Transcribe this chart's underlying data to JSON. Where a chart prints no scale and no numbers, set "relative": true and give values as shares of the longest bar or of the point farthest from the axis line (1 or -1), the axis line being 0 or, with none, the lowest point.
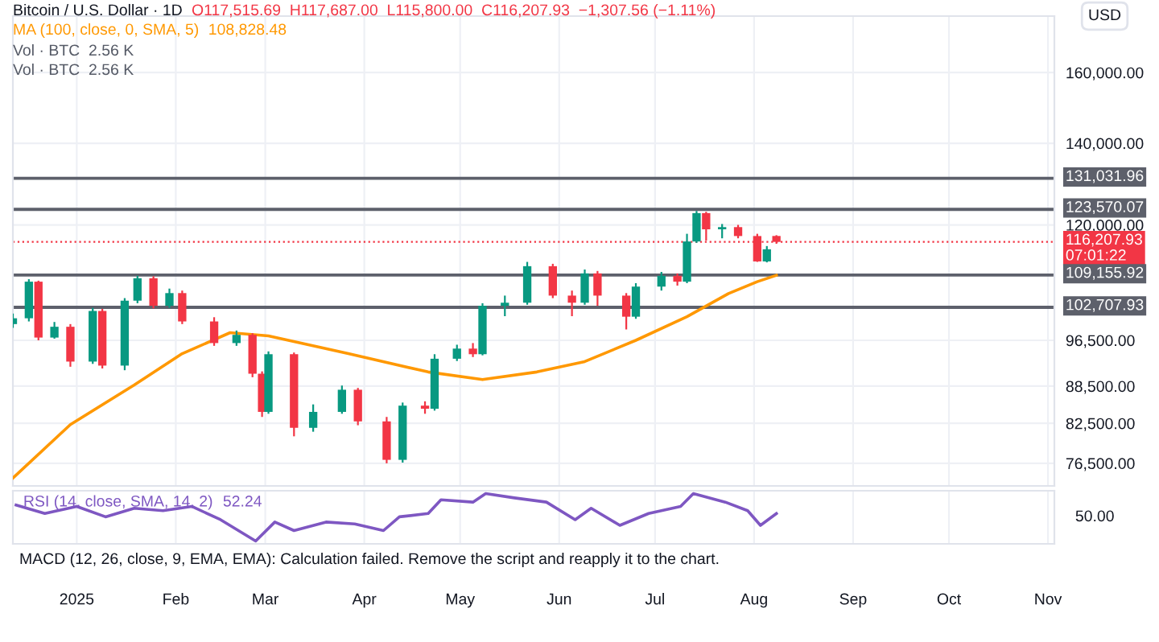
{
  "chart_data": [
    {
      "type": "candlestick",
      "title": "Bitcoin / U.S. Dollar · 1D",
      "ylabel": "USD",
      "x": [
        "2024-12-12",
        "2024-12-17",
        "2024-12-20",
        "2024-12-25",
        "2024-12-30",
        "2025-01-06",
        "2025-01-09",
        "2025-01-16",
        "2025-01-20",
        "2025-01-25",
        "2025-01-30",
        "2025-02-03",
        "2025-02-13",
        "2025-02-20",
        "2025-02-25",
        "2025-02-28",
        "2025-03-02",
        "2025-03-10",
        "2025-03-16",
        "2025-03-25",
        "2025-03-30",
        "2025-04-08",
        "2025-04-13",
        "2025-04-20",
        "2025-04-23",
        "2025-04-30",
        "2025-05-05",
        "2025-05-08",
        "2025-05-15",
        "2025-05-22",
        "2025-05-30",
        "2025-06-05",
        "2025-06-09",
        "2025-06-13",
        "2025-06-22",
        "2025-06-25",
        "2025-07-03",
        "2025-07-08",
        "2025-07-11",
        "2025-07-14",
        "2025-07-17",
        "2025-07-22",
        "2025-07-27",
        "2025-08-02",
        "2025-08-05",
        "2025-08-08"
      ],
      "ohlc": [
        [
          99500,
          101500,
          98800,
          100600
        ],
        [
          100600,
          108300,
          100000,
          107800
        ],
        [
          107800,
          108000,
          96500,
          97000
        ],
        [
          97000,
          99900,
          96800,
          99000
        ],
        [
          99000,
          99500,
          91800,
          92700
        ],
        [
          92700,
          102600,
          92300,
          102000
        ],
        [
          102000,
          102400,
          91500,
          92000
        ],
        [
          92000,
          104500,
          91200,
          104000
        ],
        [
          104000,
          109000,
          103500,
          108500
        ],
        [
          108500,
          108900,
          102500,
          103000
        ],
        [
          103000,
          106400,
          102600,
          105500
        ],
        [
          105500,
          106000,
          99500,
          100000
        ],
        [
          100000,
          100800,
          95500,
          96000
        ],
        [
          96000,
          98300,
          95500,
          97500
        ],
        [
          97500,
          97800,
          90000,
          90600
        ],
        [
          90600,
          91000,
          83500,
          84300
        ],
        [
          84300,
          94500,
          84000,
          94000
        ],
        [
          94000,
          94300,
          80500,
          81800
        ],
        [
          81800,
          85500,
          81200,
          84300
        ],
        [
          84300,
          88600,
          84000,
          87900
        ],
        [
          87900,
          88200,
          82200,
          82800
        ],
        [
          82800,
          83500,
          76500,
          77000
        ],
        [
          77000,
          85800,
          76600,
          85300
        ],
        [
          85300,
          86000,
          84000,
          84800
        ],
        [
          84800,
          94000,
          84500,
          93200
        ],
        [
          93200,
          95700,
          92800,
          95000
        ],
        [
          95000,
          96000,
          93500,
          94000
        ],
        [
          94000,
          103500,
          93800,
          103000
        ],
        [
          103000,
          105000,
          101000,
          103600
        ],
        [
          103600,
          111900,
          103200,
          111000
        ],
        [
          111000,
          111500,
          104500,
          105000
        ],
        [
          105000,
          106000,
          101000,
          103600
        ],
        [
          103600,
          110300,
          103200,
          109500
        ],
        [
          109500,
          110000,
          103000,
          105000
        ],
        [
          105000,
          105500,
          98500,
          100900
        ],
        [
          100900,
          107500,
          100500,
          106800
        ],
        [
          106800,
          109800,
          106000,
          109000
        ],
        [
          109000,
          109500,
          107000,
          107800
        ],
        [
          107800,
          118000,
          107500,
          116300
        ],
        [
          116300,
          123200,
          116000,
          122700
        ],
        [
          122700,
          123000,
          116500,
          119000
        ],
        [
          119000,
          120200,
          117000,
          119500
        ],
        [
          119500,
          120000,
          117000,
          117500
        ],
        [
          117500,
          118000,
          111900,
          112000
        ],
        [
          112000,
          115300,
          111800,
          114600
        ],
        [
          117515.69,
          117687,
          115800,
          116207.93
        ]
      ],
      "colors": [
        "#089981",
        "#089981",
        "#f23645",
        "#089981",
        "#f23645",
        "#089981",
        "#f23645",
        "#089981",
        "#089981",
        "#f23645",
        "#089981",
        "#f23645",
        "#f23645",
        "#089981",
        "#f23645",
        "#f23645",
        "#089981",
        "#f23645",
        "#089981",
        "#089981",
        "#f23645",
        "#f23645",
        "#089981",
        "#f23645",
        "#089981",
        "#089981",
        "#f23645",
        "#089981",
        "#089981",
        "#089981",
        "#f23645",
        "#f23645",
        "#089981",
        "#f23645",
        "#f23645",
        "#089981",
        "#089981",
        "#f23645",
        "#089981",
        "#089981",
        "#f23645",
        "#089981",
        "#f23645",
        "#f23645",
        "#089981",
        "#f23645"
      ],
      "series": [
        {
          "type": "line",
          "name": "MA (100, close, 0, SMA, 5)",
          "color": "#ff9800",
          "x": [
            "2024-12-12",
            "2024-12-30",
            "2025-01-19",
            "2025-02-03",
            "2025-02-18",
            "2025-03-02",
            "2025-03-27",
            "2025-04-21",
            "2025-05-08",
            "2025-05-25",
            "2025-06-09",
            "2025-06-25",
            "2025-07-11",
            "2025-07-24",
            "2025-08-02",
            "2025-08-08"
          ],
          "values": [
            74400,
            82300,
            88700,
            94100,
            97900,
            97300,
            94100,
            90900,
            89600,
            90900,
            92700,
            96500,
            100900,
            105400,
            107800,
            109100
          ]
        }
      ],
      "log": true,
      "ylim": [
        73300,
        178000
      ],
      "yticks": [
        {
          "value": 76500,
          "label": "76,500.00"
        },
        {
          "value": 82500,
          "label": "82,500.00"
        },
        {
          "value": 88500,
          "label": "88,500.00"
        },
        {
          "value": 96500,
          "label": "96,500.00"
        },
        {
          "value": 120000,
          "label": "120,000.00"
        },
        {
          "value": 140000,
          "label": "140,000.00"
        },
        {
          "value": 160000,
          "label": "160,000.00"
        }
      ],
      "xlim": [
        "2024-12-12",
        "2025-11-03"
      ],
      "xticks": [
        {
          "value": "2025-01-01",
          "label": null
        },
        {
          "value": "2025-02-01",
          "label": null
        },
        {
          "value": "2025-03-01",
          "label": null
        },
        {
          "value": "2025-04-01",
          "label": null
        },
        {
          "value": "2025-05-01",
          "label": null
        },
        {
          "value": "2025-06-01",
          "label": null
        },
        {
          "value": "2025-07-01",
          "label": null
        },
        {
          "value": "2025-08-01",
          "label": null
        },
        {
          "value": "2025-09-01",
          "label": null
        },
        {
          "value": "2025-10-01",
          "label": null
        },
        {
          "value": "2025-11-01",
          "label": null
        }
      ],
      "tick_labels": "y",
      "grid": true,
      "ref_lines": [
        {
          "axis": "y",
          "value": 131031.96,
          "label": "131,031.96",
          "color": "#5d606b"
        },
        {
          "axis": "y",
          "value": 123570.07,
          "label": "123,570.07",
          "color": "#5d606b"
        },
        {
          "axis": "y",
          "value": 116207.93,
          "label": "116,207.93\n07:01:22",
          "color": "#f23645",
          "line_style": "dotted"
        },
        {
          "axis": "y",
          "value": 109155.92,
          "label": "109,155.92",
          "color": "#5d606b"
        },
        {
          "axis": "y",
          "value": 102707.93,
          "label": "102,707.93",
          "color": "#5d606b"
        }
      ],
      "annotations": [
        "O117,515.69  H117,687.00  L115,800.00  C116,207.93  −1,307.56 (−1.11%)",
        "108,828.48",
        "Vol · BTC  2.56 K",
        "Vol · BTC  2.56 K"
      ]
    },
    {
      "type": "line",
      "relative": true,
      "series": [
        {
          "name": "RSI (14, close, SMA, 14, 2)",
          "color": "#7e57c2",
          "x": [
            "2024-12-13",
            "2024-12-22",
            "2025-01-01",
            "2025-01-10",
            "2025-01-19",
            "2025-01-28",
            "2025-02-06",
            "2025-02-15",
            "2025-02-26",
            "2025-03-04",
            "2025-03-10",
            "2025-03-20",
            "2025-03-29",
            "2025-04-07",
            "2025-04-12",
            "2025-04-21",
            "2025-04-25",
            "2025-05-05",
            "2025-05-09",
            "2025-05-18",
            "2025-05-28",
            "2025-06-06",
            "2025-06-11",
            "2025-06-20",
            "2025-06-29",
            "2025-07-09",
            "2025-07-13",
            "2025-07-23",
            "2025-07-30",
            "2025-08-03",
            "2025-08-08"
          ],
          "values": [
            0.76,
            0.58,
            0.73,
            0.51,
            0.69,
            0.64,
            0.73,
            0.45,
            0,
            0.4,
            0.22,
            0.4,
            0.36,
            0.22,
            0.51,
            0.58,
            0.87,
            0.82,
            1,
            0.91,
            0.82,
            0.45,
            0.69,
            0.33,
            0.58,
            0.73,
            1,
            0.82,
            0.64,
            0.33,
            0.58
          ]
        }
      ],
      "xlim": [
        "2024-12-12",
        "2025-11-03"
      ],
      "xticks": [
        {
          "value": "2025-01-01",
          "label": "2025"
        },
        {
          "value": "2025-02-01",
          "label": "Feb"
        },
        {
          "value": "2025-03-01",
          "label": "Mar"
        },
        {
          "value": "2025-04-01",
          "label": "Apr"
        },
        {
          "value": "2025-05-01",
          "label": "May"
        },
        {
          "value": "2025-06-01",
          "label": "Jun"
        },
        {
          "value": "2025-07-01",
          "label": "Jul"
        },
        {
          "value": "2025-08-01",
          "label": "Aug"
        },
        {
          "value": "2025-09-01",
          "label": "Sep"
        },
        {
          "value": "2025-10-01",
          "label": "Oct"
        },
        {
          "value": "2025-11-01",
          "label": "Nov"
        }
      ],
      "tick_labels": "x",
      "grid": true,
      "annotations": [
        "52.24",
        "50.00",
        "MACD (12, 26, close, 9, EMA, EMA): Calculation failed. Remove the script and reapply it to the chart."
      ]
    }
  ]
}
